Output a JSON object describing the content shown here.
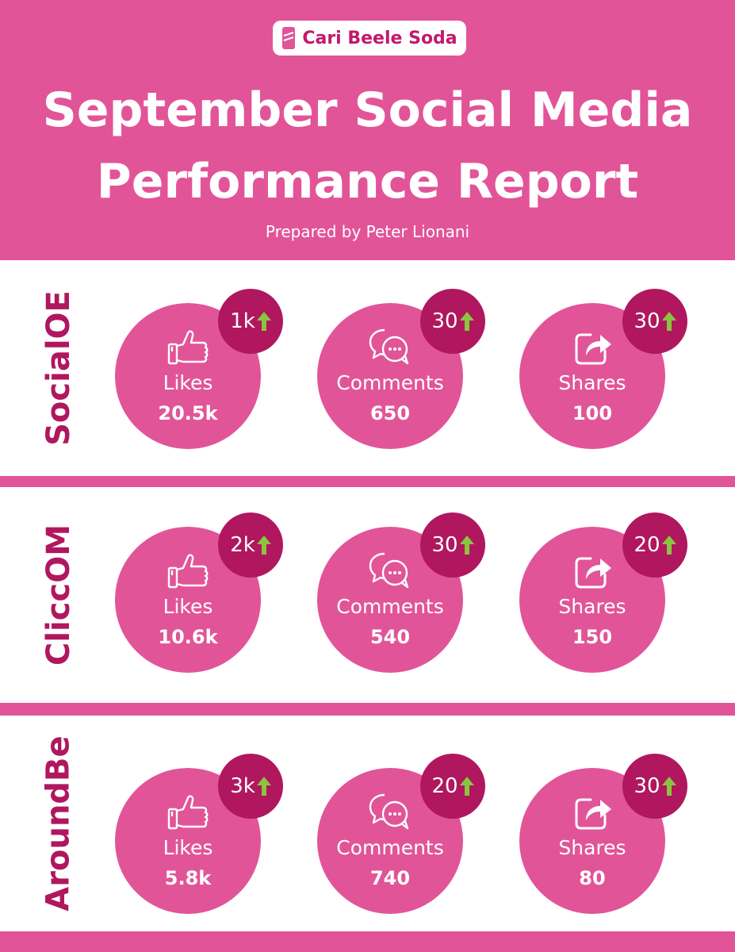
{
  "header": {
    "brand": "Cari Beele Soda",
    "title_line1": "September Social Media",
    "title_line2": "Performance Report",
    "subtitle": "Prepared by Peter Lionani"
  },
  "colors": {
    "accent": "#e25498",
    "dark_accent": "#b0175f",
    "arrow": "#8bc53f",
    "background": "#ffffff"
  },
  "icons": {
    "likes": "thumbs-up-icon",
    "comments": "chat-bubbles-icon",
    "shares": "share-arrow-icon",
    "change": "up-arrow-icon"
  },
  "platforms": [
    {
      "name": "SocialOE",
      "likes": {
        "label": "Likes",
        "value": "20.5k",
        "change": "1k"
      },
      "comments": {
        "label": "Comments",
        "value": "650",
        "change": "30"
      },
      "shares": {
        "label": "Shares",
        "value": "100",
        "change": "30"
      }
    },
    {
      "name": "ClicсOM",
      "likes": {
        "label": "Likes",
        "value": "10.6k",
        "change": "2k"
      },
      "comments": {
        "label": "Comments",
        "value": "540",
        "change": "30"
      },
      "shares": {
        "label": "Shares",
        "value": "150",
        "change": "20"
      }
    },
    {
      "name": "AroundBe",
      "likes": {
        "label": "Likes",
        "value": "5.8k",
        "change": "3k"
      },
      "comments": {
        "label": "Comments",
        "value": "740",
        "change": "20"
      },
      "shares": {
        "label": "Shares",
        "value": "80",
        "change": "30"
      }
    }
  ]
}
